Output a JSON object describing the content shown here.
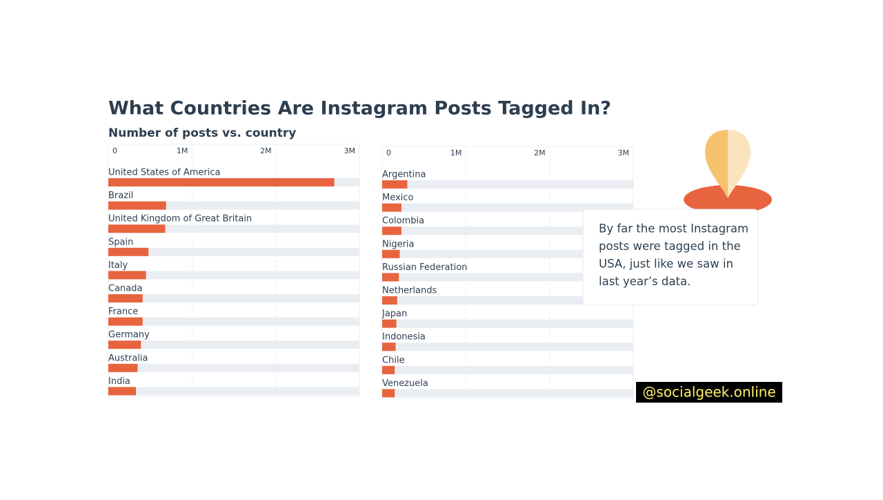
{
  "chart_data": [
    {
      "type": "hbar",
      "title": "What Countries Are Instagram Posts Tagged In?",
      "subtitle": "Number of posts vs. country",
      "categories": [
        "United States of America",
        "Brazil",
        "United Kingdom of Great Britain",
        "Spain",
        "Italy",
        "Canada",
        "France",
        "Germany",
        "Australia",
        "India"
      ],
      "values": [
        2700000,
        690000,
        680000,
        480000,
        450000,
        410000,
        410000,
        390000,
        350000,
        330000
      ],
      "color": "#e8643f",
      "xlim": [
        0,
        3000000
      ],
      "xticks": [
        0,
        {
          "value": 1000000,
          "label": "1M"
        },
        {
          "value": 2000000,
          "label": "2M"
        },
        {
          "value": 3000000,
          "label": "3M"
        }
      ],
      "grid": true
    },
    {
      "type": "hbar",
      "categories": [
        "Argentina",
        "Mexico",
        "Colombia",
        "Nigeria",
        "Russian Federation",
        "Netherlands",
        "Japan",
        "Indonesia",
        "Chile",
        "Venezuela"
      ],
      "values": [
        300000,
        230000,
        230000,
        210000,
        200000,
        180000,
        170000,
        160000,
        150000,
        150000
      ],
      "color": "#e8643f",
      "xlim": [
        0,
        3000000
      ],
      "xticks": [
        0,
        {
          "value": 1000000,
          "label": "1M"
        },
        {
          "value": 2000000,
          "label": "2M"
        },
        {
          "value": 3000000,
          "label": "3M"
        }
      ],
      "grid": true
    }
  ],
  "callout": {
    "lines": [
      "By far the most Instagram",
      "posts were tagged in the",
      "USA, just like we saw in",
      "last year’s data."
    ]
  },
  "watermark": "@socialgeek.online"
}
